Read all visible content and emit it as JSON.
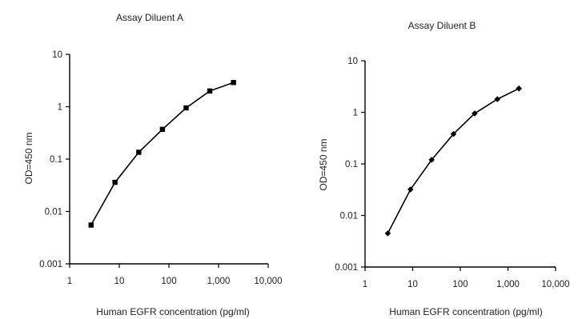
{
  "chart_data": [
    {
      "type": "line",
      "title": "Assay Diluent A",
      "xlabel": "Human EGFR concentration (pg/ml)",
      "ylabel": "OD=450 nm",
      "x_scale": "log",
      "y_scale": "log",
      "xlim": [
        1,
        10000
      ],
      "ylim": [
        0.001,
        10
      ],
      "x_ticks": [
        "1",
        "10",
        "100",
        "1,000",
        "10,000"
      ],
      "y_ticks": [
        "10",
        "1",
        "0.1",
        "0.01",
        "0.001"
      ],
      "grid": false,
      "series": [
        {
          "x": [
            2.7,
            8.2,
            24.7,
            74,
            222,
            667,
            2000
          ],
          "y": [
            0.0055,
            0.036,
            0.135,
            0.37,
            0.95,
            2.0,
            2.9
          ],
          "marker": "square"
        }
      ]
    },
    {
      "type": "line",
      "title": "Assay Diluent B",
      "xlabel": "Human EGFR concentration (pg/ml)",
      "ylabel": "OD=450 nm",
      "x_scale": "log",
      "y_scale": "log",
      "xlim": [
        1,
        10000
      ],
      "ylim": [
        0.001,
        10
      ],
      "x_ticks": [
        "1",
        "10",
        "100",
        "1,000",
        "10,000"
      ],
      "y_ticks": [
        "10",
        "1",
        "0.1",
        "0.01",
        "0.001"
      ],
      "grid": false,
      "series": [
        {
          "x": [
            3.0,
            9.0,
            25,
            72,
            200,
            600,
            1700
          ],
          "y": [
            0.0045,
            0.032,
            0.12,
            0.38,
            0.95,
            1.8,
            2.9
          ],
          "marker": "diamond"
        }
      ]
    }
  ]
}
